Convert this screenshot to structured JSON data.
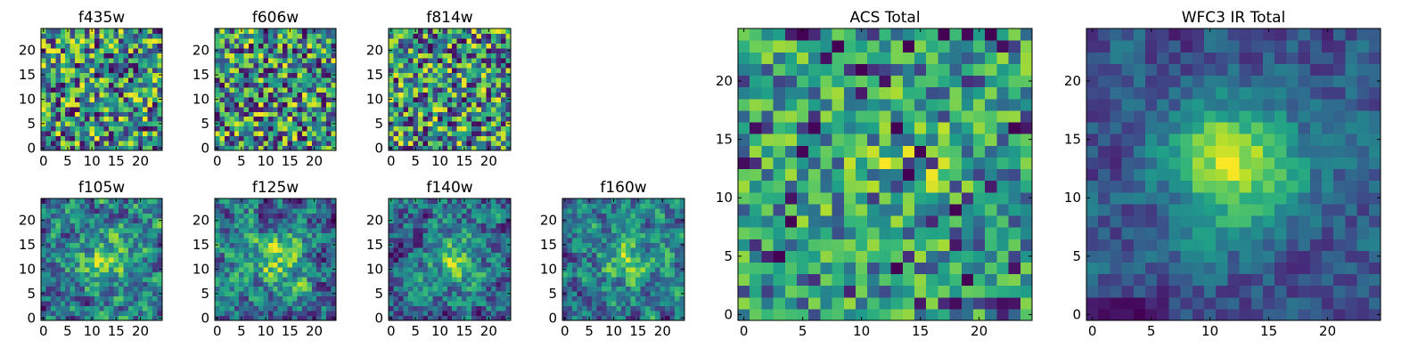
{
  "figure": {
    "background": "#ffffff",
    "colormap": "viridis"
  },
  "chart_data": [
    {
      "type": "heatmap",
      "title": "f435w",
      "grid": [
        25,
        25
      ],
      "xlim": [
        0,
        24
      ],
      "ylim": [
        0,
        24
      ],
      "xticks": [
        "0",
        "5",
        "10",
        "15",
        "20"
      ],
      "yticks": [
        "0",
        "5",
        "10",
        "15",
        "20"
      ],
      "seed": 11,
      "pattern": "noise"
    },
    {
      "type": "heatmap",
      "title": "f606w",
      "grid": [
        25,
        25
      ],
      "xlim": [
        0,
        24
      ],
      "ylim": [
        0,
        24
      ],
      "xticks": [
        "0",
        "5",
        "10",
        "15",
        "20"
      ],
      "yticks": [
        "0",
        "5",
        "10",
        "15",
        "20"
      ],
      "seed": 23,
      "pattern": "noise"
    },
    {
      "type": "heatmap",
      "title": "f814w",
      "grid": [
        25,
        25
      ],
      "xlim": [
        0,
        24
      ],
      "ylim": [
        0,
        24
      ],
      "xticks": [
        "0",
        "5",
        "10",
        "15",
        "20"
      ],
      "yticks": [
        "0",
        "5",
        "10",
        "15",
        "20"
      ],
      "seed": 37,
      "pattern": "noise"
    },
    {
      "type": "heatmap",
      "title": "f105w",
      "grid": [
        25,
        25
      ],
      "xlim": [
        0,
        24
      ],
      "ylim": [
        0,
        24
      ],
      "xticks": [
        "0",
        "5",
        "10",
        "15",
        "20"
      ],
      "yticks": [
        "0",
        "5",
        "10",
        "15",
        "20"
      ],
      "seed": 41,
      "pattern": "smooth"
    },
    {
      "type": "heatmap",
      "title": "f125w",
      "grid": [
        25,
        25
      ],
      "xlim": [
        0,
        24
      ],
      "ylim": [
        0,
        24
      ],
      "xticks": [
        "0",
        "5",
        "10",
        "15",
        "20"
      ],
      "yticks": [
        "0",
        "5",
        "10",
        "15",
        "20"
      ],
      "seed": 53,
      "pattern": "smooth"
    },
    {
      "type": "heatmap",
      "title": "f140w",
      "grid": [
        25,
        25
      ],
      "xlim": [
        0,
        24
      ],
      "ylim": [
        0,
        24
      ],
      "xticks": [
        "0",
        "5",
        "10",
        "15",
        "20"
      ],
      "yticks": [
        "0",
        "5",
        "10",
        "15",
        "20"
      ],
      "seed": 67,
      "pattern": "smooth"
    },
    {
      "type": "heatmap",
      "title": "f160w",
      "grid": [
        25,
        25
      ],
      "xlim": [
        0,
        24
      ],
      "ylim": [
        0,
        24
      ],
      "xticks": [
        "0",
        "5",
        "10",
        "15",
        "20"
      ],
      "yticks": [
        "0",
        "5",
        "10",
        "15",
        "20"
      ],
      "seed": 79,
      "pattern": "smooth"
    },
    {
      "type": "heatmap",
      "title": "ACS Total",
      "grid": [
        25,
        25
      ],
      "xlim": [
        0,
        24
      ],
      "ylim": [
        0,
        24
      ],
      "xticks": [
        "0",
        "5",
        "10",
        "15",
        "20"
      ],
      "yticks": [
        "0",
        "5",
        "10",
        "15",
        "20"
      ],
      "seed": 83,
      "pattern": "bright"
    },
    {
      "type": "heatmap",
      "title": "WFC3 IR Total",
      "grid": [
        25,
        25
      ],
      "xlim": [
        0,
        24
      ],
      "ylim": [
        0,
        24
      ],
      "xticks": [
        "0",
        "5",
        "10",
        "15",
        "20"
      ],
      "yticks": [
        "0",
        "5",
        "10",
        "15",
        "20"
      ],
      "seed": 97,
      "pattern": "blob"
    }
  ]
}
